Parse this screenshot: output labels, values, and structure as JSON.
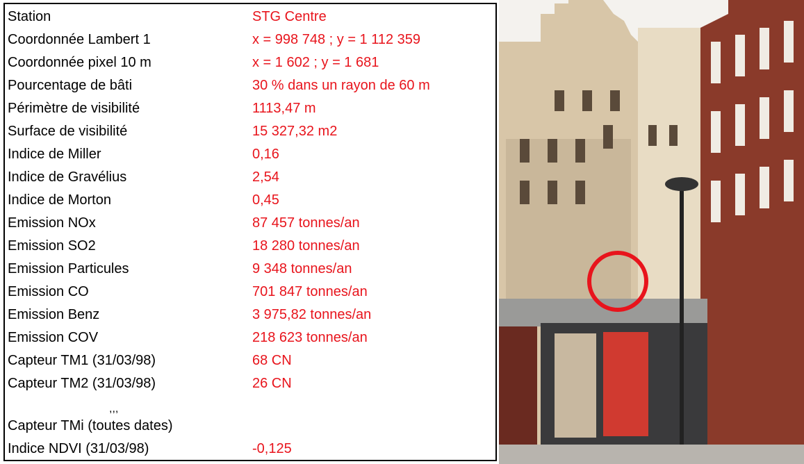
{
  "table": {
    "rows": [
      {
        "label": "Station",
        "value": "STG Centre"
      },
      {
        "label": "Coordonnée Lambert 1",
        "value": "x = 998 748 ; y = 1 112 359"
      },
      {
        "label": "Coordonnée pixel 10 m",
        "value": "x = 1 602 ; y = 1 681"
      },
      {
        "label": "Pourcentage de bâti",
        "value": "30 % dans un rayon de 60 m"
      },
      {
        "label": "Périmètre de visibilité",
        "value": "1113,47 m"
      },
      {
        "label": "Surface de visibilité",
        "value": "15 327,32 m2"
      },
      {
        "label": "Indice de Miller",
        "value": "0,16"
      },
      {
        "label": "Indice de Gravélius",
        "value": "2,54"
      },
      {
        "label": "Indice de Morton",
        "value": "0,45"
      },
      {
        "label": "Emission NOx",
        "value": "87 457 tonnes/an"
      },
      {
        "label": "Emission SO2",
        "value": "18 280 tonnes/an"
      },
      {
        "label": "Emission Particules",
        "value": "9 348 tonnes/an"
      },
      {
        "label": "Emission CO",
        "value": "701 847 tonnes/an"
      },
      {
        "label": "Emission Benz",
        "value": "3 975,82 tonnes/an"
      },
      {
        "label": "Emission COV",
        "value": "218 623 tonnes/an"
      },
      {
        "label": "Capteur TM1 (31/03/98)",
        "value": "68 CN"
      },
      {
        "label": "Capteur TM2 (31/03/98)",
        "value": "26 CN"
      },
      {
        "label": ",,,"
      },
      {
        "label": "Capteur TMi (toutes dates)"
      },
      {
        "label": "Indice NDVI (31/03/98)",
        "value": "-0,125"
      }
    ]
  }
}
